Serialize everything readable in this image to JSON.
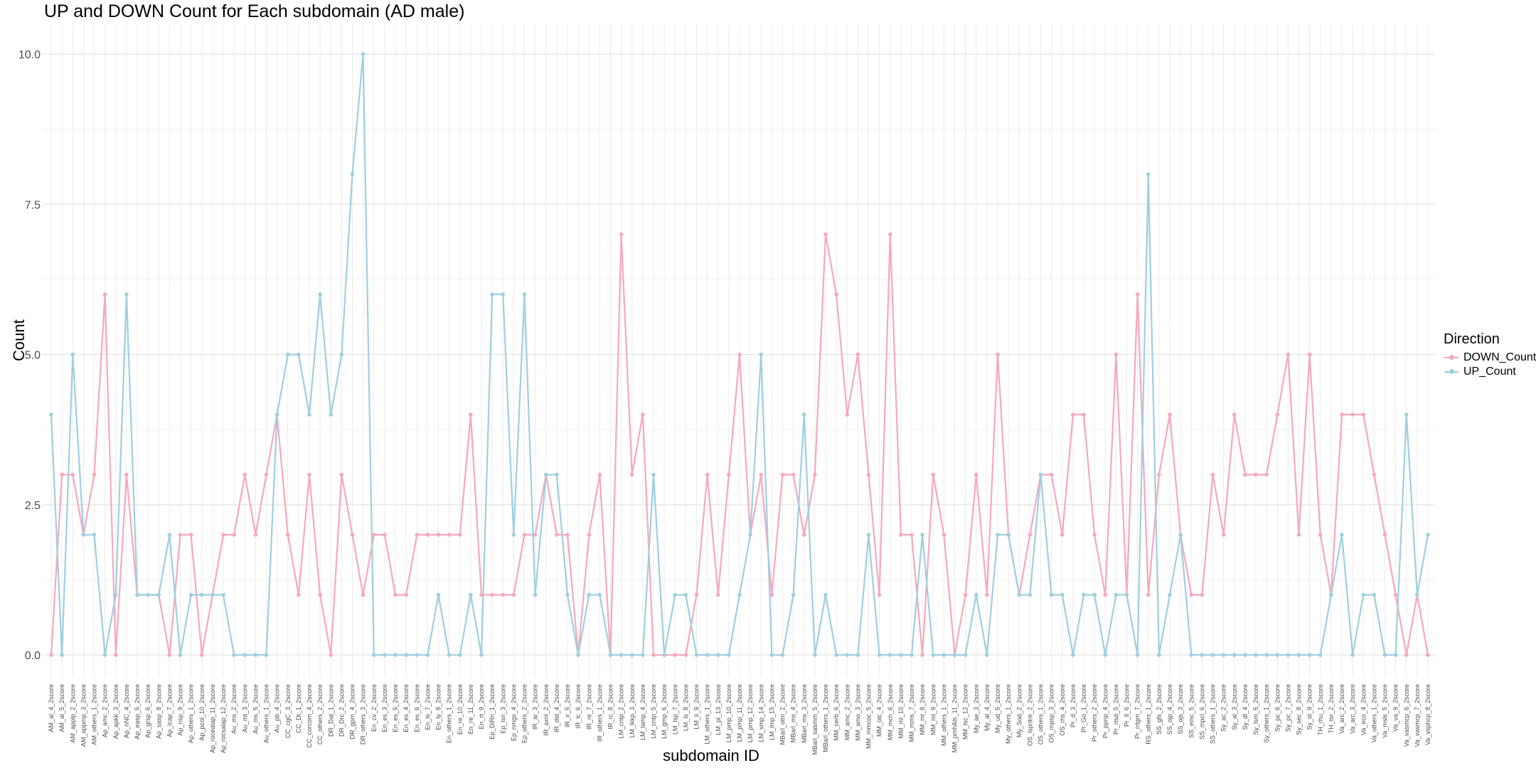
{
  "chart_data": {
    "type": "line",
    "title": "UP and DOWN Count for Each subdomain (AD male)",
    "xlabel": "subdomain ID",
    "ylabel": "Count",
    "ylim": [
      0,
      10.5
    ],
    "y_ticks": [
      "0.0",
      "2.5",
      "5.0",
      "7.5",
      "10.0"
    ],
    "grid": true,
    "legend": {
      "title": "Direction",
      "placement": "right"
    },
    "categories": [
      "AM_al_4_2score",
      "AM_al_5_2score",
      "AM_applp_2_2score",
      "AM_appmp_3_2score",
      "AM_others_1_2score",
      "Ap_amc_2_2score",
      "Ap_apkk_3_2score",
      "Ap_nNC_4_2score",
      "Ap_easp_5_2score",
      "Ap_grsp_6_2score",
      "Ap_sasp_8_2score",
      "Ap_icap_7_2score",
      "Ap_nsp_9_2score",
      "Ap_others_1_2score",
      "Ap_pcol_10_2score",
      "Ap_rocealap_11_2score",
      "Ap_rocsalap_12_2score",
      "Au_ms_2_2score",
      "Au_mt_3_2score",
      "Au_ms_5_2score",
      "Au_others_1_2score",
      "Au_pb_4_2score",
      "CC_cgC_3_2score",
      "CC_Dt_1_2score",
      "CC_corcom_4_2score",
      "CC_others_2_2score",
      "DR_Dat_1_2score",
      "DR_Drc_2_2score",
      "DR_gpm_4_2score",
      "DR_others_3_2score",
      "En_cv_2_2score",
      "En_es_3_2score",
      "En_es_5_2score",
      "En_es_4_2score",
      "En_es_6_2score",
      "En_ls_7_2score",
      "En_ly_8_2score",
      "En_others_1_2score",
      "En_re_10_2score",
      "En_re_11_2score",
      "En_rt_9_2score",
      "Ep_DiRn_1_2score",
      "Ep_lsn_3_2score",
      "Ep_nmgs_4_2score",
      "Ep_others_2_2score",
      "IR_ar_3_2score",
      "IR_axnl_2_2score",
      "IR_dst_4_2score",
      "IR_ir_5_2score",
      "IR_lc_6_2score",
      "IR_re_7_2score",
      "IR_others_1_2score",
      "IR_rc_8_2score",
      "LM_cntp_2_2score",
      "LM_lkkp_3_2score",
      "LM_lamp_4_2score",
      "LM_cntp_5_2score",
      "LM_gmp_6_2score",
      "LM_lsp_7_2score",
      "LM_ls_8_2score",
      "LM_li_9_2score",
      "LM_others_1_2score",
      "LM_pl_13_2score",
      "LM_pmp_10_2score",
      "LM_pmp_11_2score",
      "LM_pmp_12_2score",
      "LM_smp_14_2score",
      "LM_lmp_15_2score",
      "MBarl_otm_2_2score",
      "MBarl_ms_4_2score",
      "MBarl_ms_3_2score",
      "MBarl_sasmm_5_2score",
      "MBarl_others_1_2score",
      "MM_cerb_6_2score",
      "MM_amc_2_2score",
      "MM_amo_3_2score",
      "MM_mmcoc_5_2score",
      "MM_otc_4_2score",
      "MM_mch_6_2score",
      "MM_ml_10_2score",
      "MM_mms_7_2score",
      "MM_ml_8_2score",
      "MM_ml_9_2score",
      "MM_others_1_2score",
      "MM_pmhAls_11_2score",
      "MM_lsc_12_2score",
      "My_ae_3_2score",
      "My_al_4_2score",
      "My_ud_5_2score",
      "My_others_1_2score",
      "My_Sod_2_2score",
      "OS_ispritre_2_2score",
      "OS_others_1_2score",
      "OS_rnpsp_3_2score",
      "OS_rhs_4_2score",
      "Pr_d_3_2score",
      "Pr_Go_1_2score",
      "Pr_others_2_2score",
      "Pr_ppnp_4_2score",
      "Pr_rtsd_5_2score",
      "Pr_ll_6_2score",
      "Pr_rrtgm_7_2score",
      "RS_others_1_2score",
      "SS_gfs_2_2score",
      "SS_ojp_4_2score",
      "SS_ojs_3_2score",
      "SS_emc_5_2score",
      "SS_mpcl_6_2score",
      "SS_others_1_2score",
      "Sy_ac_2_2score",
      "Sy_al_3_2score",
      "Sy_dl_4_2score",
      "Sy_lsm_5_2score",
      "Sy_others_1_2score",
      "Sy_pc_6_2score",
      "Sy_pc_7_2score",
      "Sy_sec_8_2score",
      "Sy_st_9_2score",
      "TH_rhu_1_2score",
      "TH_tsr_2_2score",
      "Va_arc_2_2score",
      "Va_arc_3_2score",
      "Va_eco_4_2score",
      "Va_others_1_2score",
      "Va_msls_5_2score",
      "Va_va_9_2score",
      "Va_vasmcp_6_2score",
      "Va_vasmcp_7_2score",
      "Va_vsphcp_8_2score"
    ],
    "series": [
      {
        "name": "DOWN_Count",
        "color": "#F7A8BE",
        "values": [
          0,
          3,
          3,
          2,
          3,
          6,
          0,
          3,
          1,
          1,
          1,
          0,
          2,
          2,
          0,
          1,
          2,
          2,
          3,
          2,
          3,
          4,
          2,
          1,
          3,
          1,
          0,
          3,
          2,
          1,
          2,
          2,
          1,
          1,
          2,
          2,
          2,
          2,
          2,
          4,
          1,
          1,
          1,
          1,
          2,
          2,
          3,
          2,
          2,
          0,
          2,
          3,
          0,
          7,
          3,
          4,
          0,
          0,
          0,
          0,
          1,
          3,
          1,
          3,
          5,
          2,
          3,
          1,
          3,
          3,
          2,
          3,
          7,
          6,
          4,
          5,
          3,
          1,
          7,
          2,
          2,
          0,
          3,
          2,
          0,
          1,
          3,
          1,
          5,
          2,
          1,
          2,
          3,
          3,
          2,
          4,
          4,
          2,
          1,
          5,
          1,
          6,
          1,
          3,
          4,
          2,
          1,
          1,
          3,
          2,
          4,
          3,
          3,
          3,
          4,
          5,
          2,
          5,
          2,
          1,
          4,
          4,
          4,
          3,
          2,
          1,
          0,
          1,
          0
        ]
      },
      {
        "name": "UP_Count",
        "color": "#9ECFE0",
        "values": [
          4,
          0,
          5,
          2,
          2,
          0,
          1,
          6,
          1,
          1,
          1,
          2,
          0,
          1,
          1,
          1,
          1,
          0,
          0,
          0,
          0,
          4,
          5,
          5,
          4,
          6,
          4,
          5,
          8,
          10,
          0,
          0,
          0,
          0,
          0,
          0,
          1,
          0,
          0,
          1,
          0,
          6,
          6,
          2,
          6,
          1,
          3,
          3,
          1,
          0,
          1,
          1,
          0,
          0,
          0,
          0,
          3,
          0,
          1,
          1,
          0,
          0,
          0,
          0,
          1,
          2,
          5,
          0,
          0,
          1,
          4,
          0,
          1,
          0,
          0,
          0,
          2,
          0,
          0,
          0,
          0,
          2,
          0,
          0,
          0,
          0,
          1,
          0,
          2,
          2,
          1,
          1,
          3,
          1,
          1,
          0,
          1,
          1,
          0,
          1,
          1,
          0,
          8,
          0,
          1,
          2,
          0,
          0,
          0,
          0,
          0,
          0,
          0,
          0,
          0,
          0,
          0,
          0,
          0,
          1,
          2,
          0,
          1,
          1,
          0,
          0,
          4,
          1,
          2
        ]
      }
    ]
  }
}
